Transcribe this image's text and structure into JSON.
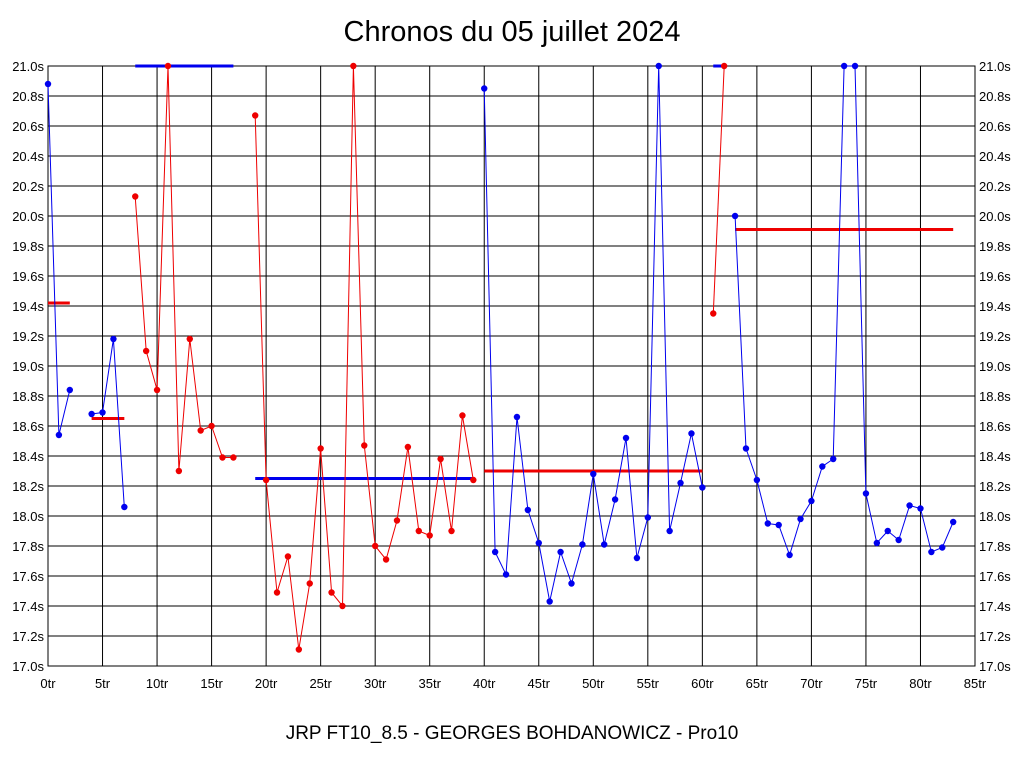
{
  "chart_data": {
    "type": "line",
    "title": "Chronos du 05 juillet 2024",
    "subtitle": "JRP FT10_8.5 - GEORGES BOHDANOWICZ - Pro10",
    "xlabel": "",
    "ylabel": "",
    "xlim": [
      0,
      85
    ],
    "ylim": [
      17.0,
      21.0
    ],
    "x_ticks": [
      0,
      5,
      10,
      15,
      20,
      25,
      30,
      35,
      40,
      45,
      50,
      55,
      60,
      65,
      70,
      75,
      80,
      85
    ],
    "x_tick_labels": [
      "0tr",
      "5tr",
      "10tr",
      "15tr",
      "20tr",
      "25tr",
      "30tr",
      "35tr",
      "40tr",
      "45tr",
      "50tr",
      "55tr",
      "60tr",
      "65tr",
      "70tr",
      "75tr",
      "80tr",
      "85tr"
    ],
    "y_ticks": [
      17.0,
      17.2,
      17.4,
      17.6,
      17.8,
      18.0,
      18.2,
      18.4,
      18.6,
      18.8,
      19.0,
      19.2,
      19.4,
      19.6,
      19.8,
      20.0,
      20.2,
      20.4,
      20.6,
      20.8,
      21.0
    ],
    "y_tick_labels": [
      "17.0s",
      "17.2s",
      "17.4s",
      "17.6s",
      "17.8s",
      "18.0s",
      "18.2s",
      "18.4s",
      "18.6s",
      "18.8s",
      "19.0s",
      "19.2s",
      "19.4s",
      "19.6s",
      "19.8s",
      "20.0s",
      "20.2s",
      "20.4s",
      "20.6s",
      "20.8s",
      "21.0s"
    ],
    "grid": true,
    "series": [
      {
        "color": "#0000ee",
        "points": [
          [
            0,
            20.88
          ],
          [
            1,
            18.54
          ],
          [
            2,
            18.84
          ]
        ]
      },
      {
        "color": "#0000ee",
        "points": [
          [
            4,
            18.68
          ],
          [
            5,
            18.69
          ],
          [
            6,
            19.18
          ],
          [
            7,
            18.06
          ]
        ]
      },
      {
        "color": "#ee0000",
        "points": [
          [
            8,
            20.13
          ],
          [
            9,
            19.1
          ],
          [
            10,
            18.84
          ],
          [
            11,
            21.0
          ],
          [
            12,
            18.3
          ],
          [
            13,
            19.18
          ],
          [
            14,
            18.57
          ],
          [
            15,
            18.6
          ],
          [
            16,
            18.39
          ],
          [
            17,
            18.39
          ]
        ]
      },
      {
        "color": "#ee0000",
        "points": [
          [
            19,
            20.67
          ],
          [
            20,
            18.24
          ],
          [
            21,
            17.49
          ],
          [
            22,
            17.73
          ],
          [
            23,
            17.11
          ],
          [
            24,
            17.55
          ],
          [
            25,
            18.45
          ],
          [
            26,
            17.49
          ],
          [
            27,
            17.4
          ],
          [
            28,
            21.0
          ],
          [
            29,
            18.47
          ],
          [
            30,
            17.8
          ],
          [
            31,
            17.71
          ],
          [
            32,
            17.97
          ],
          [
            33,
            18.46
          ],
          [
            34,
            17.9
          ],
          [
            35,
            17.87
          ],
          [
            36,
            18.38
          ],
          [
            37,
            17.9
          ],
          [
            38,
            18.67
          ],
          [
            39,
            18.24
          ]
        ]
      },
      {
        "color": "#0000ee",
        "points": [
          [
            40,
            20.85
          ],
          [
            41,
            17.76
          ],
          [
            42,
            17.61
          ],
          [
            43,
            18.66
          ],
          [
            44,
            18.04
          ],
          [
            45,
            17.82
          ],
          [
            46,
            17.43
          ],
          [
            47,
            17.76
          ],
          [
            48,
            17.55
          ],
          [
            49,
            17.81
          ],
          [
            50,
            18.28
          ],
          [
            51,
            17.81
          ],
          [
            52,
            18.11
          ],
          [
            53,
            18.52
          ],
          [
            54,
            17.72
          ],
          [
            55,
            17.99
          ],
          [
            56,
            21.0
          ],
          [
            57,
            17.9
          ],
          [
            58,
            18.22
          ],
          [
            59,
            18.55
          ],
          [
            60,
            18.19
          ]
        ]
      },
      {
        "color": "#ee0000",
        "points": [
          [
            61,
            19.35
          ],
          [
            62,
            21.0
          ]
        ]
      },
      {
        "color": "#0000ee",
        "points": [
          [
            63,
            20.0
          ],
          [
            64,
            18.45
          ],
          [
            65,
            18.24
          ],
          [
            66,
            17.95
          ],
          [
            67,
            17.94
          ],
          [
            68,
            17.74
          ],
          [
            69,
            17.98
          ],
          [
            70,
            18.1
          ],
          [
            71,
            18.33
          ],
          [
            72,
            18.38
          ],
          [
            73,
            21.0
          ],
          [
            74,
            21.0
          ],
          [
            75,
            18.15
          ],
          [
            76,
            17.82
          ],
          [
            77,
            17.9
          ],
          [
            78,
            17.84
          ],
          [
            79,
            18.07
          ],
          [
            80,
            18.05
          ],
          [
            81,
            17.76
          ],
          [
            82,
            17.79
          ],
          [
            83,
            17.96
          ]
        ]
      }
    ],
    "averages": [
      {
        "color": "#ee0000",
        "x": [
          0,
          2
        ],
        "y": 19.42
      },
      {
        "color": "#ee0000",
        "x": [
          4,
          7
        ],
        "y": 18.65
      },
      {
        "color": "#0000ee",
        "x": [
          8,
          17
        ],
        "y": 21.0
      },
      {
        "color": "#0000ee",
        "x": [
          19,
          39
        ],
        "y": 18.25
      },
      {
        "color": "#ee0000",
        "x": [
          40,
          60
        ],
        "y": 18.3
      },
      {
        "color": "#0000ee",
        "x": [
          61,
          62
        ],
        "y": 21.0
      },
      {
        "color": "#ee0000",
        "x": [
          63,
          83
        ],
        "y": 19.91
      }
    ]
  }
}
